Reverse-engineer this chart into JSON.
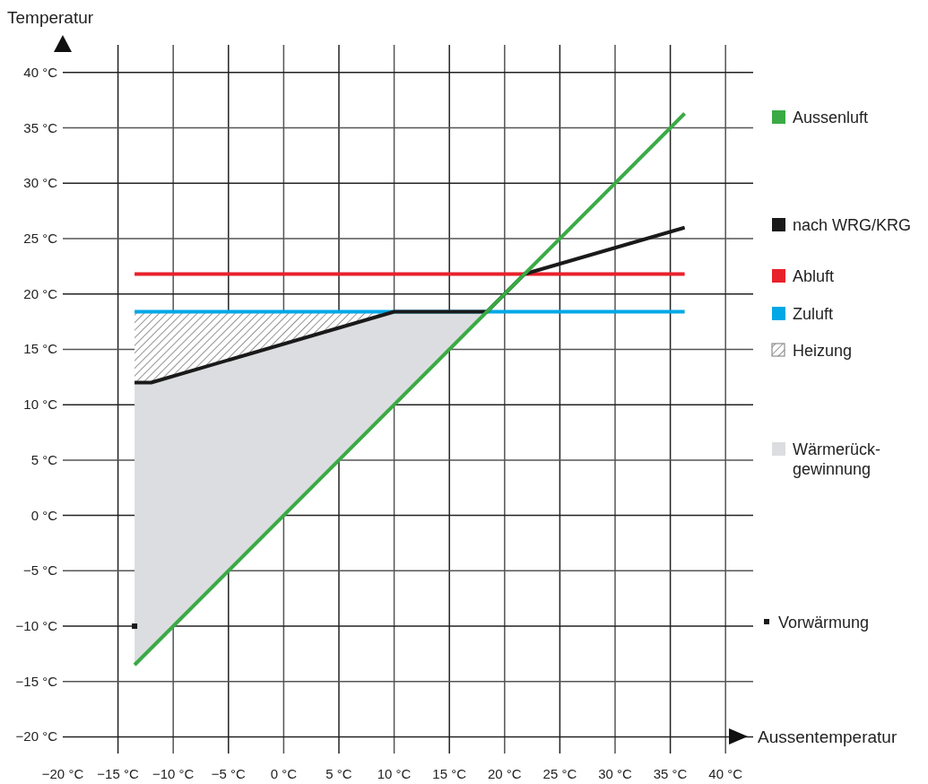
{
  "chart_data": {
    "type": "line",
    "ylabel": "Temperatur",
    "xlabel": "Aussentemperatur",
    "xlim": [
      -20,
      42.5
    ],
    "ylim": [
      -21.5,
      42.5
    ],
    "xticks": [
      {
        "value": -20,
        "label": "−20 °C"
      },
      {
        "value": -15,
        "label": "−15 °C"
      },
      {
        "value": -10,
        "label": "−10 °C"
      },
      {
        "value": -5,
        "label": "−5 °C"
      },
      {
        "value": 0,
        "label": "0 °C"
      },
      {
        "value": 5,
        "label": "5 °C"
      },
      {
        "value": 10,
        "label": "10 °C"
      },
      {
        "value": 15,
        "label": "15 °C"
      },
      {
        "value": 20,
        "label": "20 °C"
      },
      {
        "value": 25,
        "label": "25 °C"
      },
      {
        "value": 30,
        "label": "30 °C"
      },
      {
        "value": 35,
        "label": "35 °C"
      },
      {
        "value": 40,
        "label": "40 °C"
      }
    ],
    "yticks": [
      {
        "value": -20,
        "label": "−20 °C"
      },
      {
        "value": -15,
        "label": "−15 °C"
      },
      {
        "value": -10,
        "label": "−10 °C"
      },
      {
        "value": -5,
        "label": "−5 °C"
      },
      {
        "value": 0,
        "label": "0 °C"
      },
      {
        "value": 5,
        "label": "5 °C"
      },
      {
        "value": 10,
        "label": "10 °C"
      },
      {
        "value": 15,
        "label": "15 °C"
      },
      {
        "value": 20,
        "label": "20 °C"
      },
      {
        "value": 25,
        "label": "25 °C"
      },
      {
        "value": 30,
        "label": "30 °C"
      },
      {
        "value": 35,
        "label": "35 °C"
      },
      {
        "value": 40,
        "label": "40 °C"
      }
    ],
    "grid": true,
    "legend": "right",
    "series": [
      {
        "name": "Aussenluft",
        "color": "#3aaa45",
        "x": [
          -13.5,
          36.3
        ],
        "values": [
          -13.5,
          36.3
        ]
      },
      {
        "name": "nach WRG/KRG",
        "color": "#1a1a1a",
        "x": [
          -13.5,
          -12,
          10,
          18.4,
          21.8,
          36.3
        ],
        "values": [
          12,
          12,
          18.4,
          18.4,
          21.8,
          26
        ]
      },
      {
        "name": "Abluft",
        "color": "#e8212a",
        "x": [
          -13.5,
          36.3
        ],
        "values": [
          21.8,
          21.8
        ]
      },
      {
        "name": "Zuluft",
        "color": "#00a8e6",
        "x": [
          -13.5,
          36.3
        ],
        "values": [
          18.4,
          18.4
        ]
      },
      {
        "name": "Heizung",
        "color": "#777777",
        "x": [
          -13.5,
          -12,
          10
        ],
        "values": [
          null,
          null,
          null
        ],
        "upper": [
          18.4,
          18.4,
          18.4
        ],
        "lower": [
          12,
          12,
          18.4
        ]
      },
      {
        "name": "Wärmerück-\ngewinnung",
        "color": "#dcdde0",
        "x": [
          -13.5,
          -12,
          10,
          18.4
        ],
        "values": [
          null,
          null,
          null,
          null
        ],
        "upper": [
          12,
          12,
          18.4,
          18.4
        ],
        "lower": [
          -13.5,
          -12,
          10,
          18.4
        ]
      },
      {
        "name": "Vorwärmung",
        "type": "scatter",
        "marker": "square",
        "color": "#1a1a1a",
        "x": [
          -13.5
        ],
        "values": [
          -10
        ]
      }
    ]
  }
}
